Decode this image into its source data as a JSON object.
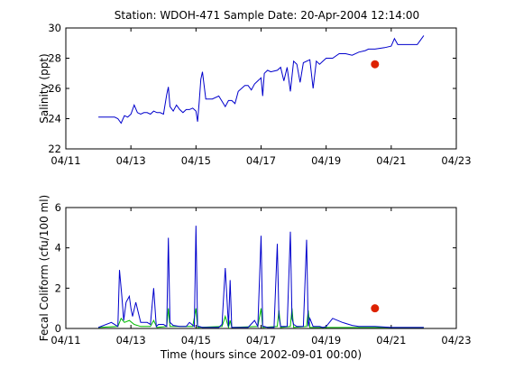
{
  "figure": {
    "title": "Station: WDOH-471  Sample Date: 20-Apr-2004 12:14:00"
  },
  "chart_data": [
    {
      "type": "line",
      "ylabel": "Salinity (ppt)",
      "xlabel": "",
      "xticks": [
        "04/11",
        "04/13",
        "04/15",
        "04/17",
        "04/19",
        "04/21",
        "04/23"
      ],
      "xlim": [
        "04/11",
        "04/23"
      ],
      "yticks": [
        "22",
        "24",
        "26",
        "28",
        "30"
      ],
      "ylim": [
        22,
        30
      ],
      "grid": false,
      "series": [
        {
          "color": "#0000cc",
          "x": [
            12.0,
            12.5,
            12.6,
            12.7,
            12.8,
            12.9,
            13.0,
            13.1,
            13.2,
            13.3,
            13.4,
            13.5,
            13.6,
            13.7,
            13.8,
            13.9,
            14.0,
            14.1,
            14.15,
            14.2,
            14.3,
            14.4,
            14.5,
            14.6,
            14.7,
            14.8,
            14.9,
            15.0,
            15.05,
            15.1,
            15.15,
            15.2,
            15.3,
            15.5,
            15.7,
            15.9,
            16.0,
            16.1,
            16.2,
            16.3,
            16.5,
            16.6,
            16.7,
            16.8,
            16.9,
            17.0,
            17.05,
            17.1,
            17.2,
            17.3,
            17.5,
            17.6,
            17.7,
            17.8,
            17.9,
            18.0,
            18.1,
            18.2,
            18.3,
            18.5,
            18.6,
            18.7,
            18.8,
            18.9,
            19.0,
            19.2,
            19.4,
            19.6,
            19.8,
            20.0,
            20.2,
            20.3,
            20.5,
            20.8,
            21.0,
            21.1,
            21.2,
            21.5,
            21.8,
            21.9,
            22.0
          ],
          "y": [
            24.1,
            24.1,
            24.0,
            23.7,
            24.2,
            24.1,
            24.3,
            24.9,
            24.4,
            24.3,
            24.4,
            24.4,
            24.3,
            24.5,
            24.4,
            24.4,
            24.3,
            25.6,
            26.1,
            24.8,
            24.5,
            24.9,
            24.6,
            24.4,
            24.6,
            24.6,
            24.7,
            24.5,
            23.8,
            25.1,
            26.6,
            27.1,
            25.3,
            25.3,
            25.5,
            24.8,
            25.2,
            25.2,
            25.0,
            25.8,
            26.2,
            26.2,
            25.9,
            26.3,
            26.5,
            26.7,
            25.5,
            27.0,
            27.2,
            27.1,
            27.2,
            27.4,
            26.5,
            27.4,
            25.8,
            27.8,
            27.6,
            26.4,
            27.7,
            27.9,
            26.0,
            27.8,
            27.6,
            27.8,
            28.0,
            28.0,
            28.3,
            28.3,
            28.2,
            28.4,
            28.5,
            28.6,
            28.6,
            28.7,
            28.8,
            29.3,
            28.9,
            28.9,
            28.9,
            29.2,
            29.5
          ]
        }
      ],
      "points": [
        {
          "x": 20.5,
          "y": 27.6,
          "color": "#dd2200"
        }
      ]
    },
    {
      "type": "line",
      "ylabel": "Fecal Coliform (cfu/100 ml)",
      "xlabel": "Time (hours since 2002-09-01 00:00)",
      "xticks": [
        "04/11",
        "04/13",
        "04/15",
        "04/17",
        "04/19",
        "04/21",
        "04/23"
      ],
      "xlim": [
        "04/11",
        "04/23"
      ],
      "yticks": [
        "0",
        "2",
        "4",
        "6"
      ],
      "ylim": [
        0,
        6
      ],
      "grid": false,
      "series": [
        {
          "color": "#0000cc",
          "x": [
            12.0,
            12.4,
            12.6,
            12.65,
            12.72,
            12.78,
            12.85,
            12.95,
            13.0,
            13.05,
            13.15,
            13.3,
            13.5,
            13.6,
            13.7,
            13.78,
            13.85,
            14.0,
            14.1,
            14.15,
            14.2,
            14.3,
            14.5,
            14.6,
            14.7,
            14.8,
            14.95,
            15.0,
            15.05,
            15.1,
            15.2,
            15.5,
            15.7,
            15.8,
            15.9,
            16.0,
            16.05,
            16.1,
            16.2,
            16.4,
            16.6,
            16.8,
            16.9,
            17.0,
            17.05,
            17.1,
            17.2,
            17.4,
            17.5,
            17.55,
            17.6,
            17.8,
            17.9,
            17.95,
            18.0,
            18.1,
            18.3,
            18.4,
            18.45,
            18.5,
            18.6,
            18.8,
            18.9,
            19.0,
            19.2,
            19.5,
            19.8,
            20.0,
            20.5,
            21.0,
            22.0
          ],
          "y": [
            0.05,
            0.3,
            0.1,
            2.9,
            1.6,
            0.4,
            1.3,
            1.6,
            1.0,
            0.6,
            1.3,
            0.3,
            0.3,
            0.2,
            2.0,
            0.1,
            0.2,
            0.2,
            0.1,
            4.5,
            0.3,
            0.15,
            0.1,
            0.1,
            0.1,
            0.3,
            0.1,
            5.1,
            0.1,
            0.1,
            0.05,
            0.05,
            0.05,
            0.2,
            3.0,
            0.1,
            2.4,
            0.05,
            0.05,
            0.05,
            0.05,
            0.4,
            0.1,
            4.6,
            0.1,
            0.1,
            0.05,
            0.05,
            4.2,
            0.6,
            0.1,
            0.1,
            4.8,
            0.5,
            0.2,
            0.1,
            0.1,
            4.4,
            0.1,
            0.5,
            0.1,
            0.1,
            0.05,
            0.1,
            0.5,
            0.3,
            0.15,
            0.1,
            0.1,
            0.05,
            0.05
          ]
        },
        {
          "color": "#00bb00",
          "x": [
            12.0,
            12.6,
            12.7,
            12.8,
            12.95,
            13.1,
            13.3,
            13.6,
            13.7,
            13.8,
            14.1,
            14.15,
            14.2,
            14.9,
            15.0,
            15.05,
            15.8,
            15.9,
            16.0,
            16.05,
            16.1,
            16.9,
            17.0,
            17.05,
            17.5,
            17.55,
            17.6,
            17.9,
            17.95,
            18.0,
            18.4,
            18.45,
            18.5,
            19.0,
            20.0,
            21.0,
            22.0
          ],
          "y": [
            0.05,
            0.1,
            0.5,
            0.3,
            0.4,
            0.2,
            0.1,
            0.1,
            0.4,
            0.05,
            0.1,
            1.0,
            0.1,
            0.1,
            1.0,
            0.05,
            0.1,
            0.6,
            0.05,
            0.4,
            0.05,
            0.1,
            1.0,
            0.05,
            0.1,
            0.9,
            0.05,
            0.1,
            1.0,
            0.05,
            0.1,
            0.9,
            0.05,
            0.05,
            0.05,
            0.05,
            0.05
          ]
        }
      ],
      "points": [
        {
          "x": 20.5,
          "y": 1.0,
          "color": "#dd2200"
        }
      ]
    }
  ]
}
